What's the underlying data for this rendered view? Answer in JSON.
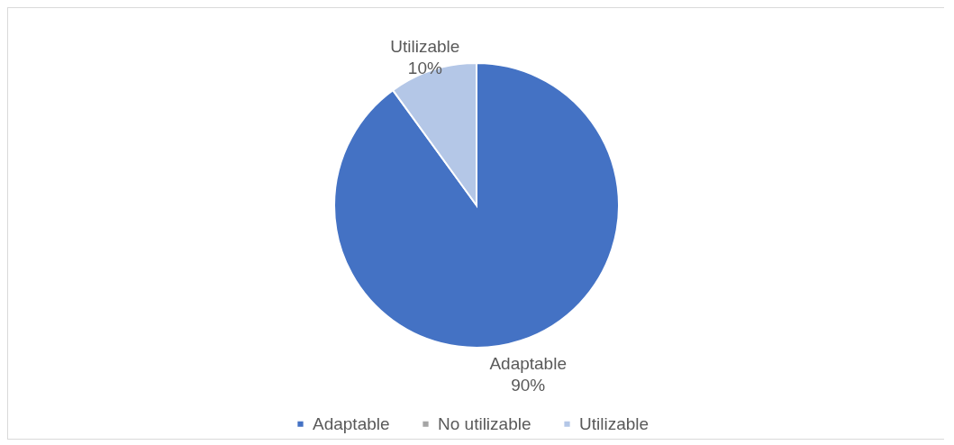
{
  "chart_data": {
    "type": "pie",
    "categories": [
      "Adaptable",
      "No utilizable",
      "Utilizable"
    ],
    "values": [
      90,
      0,
      10
    ],
    "colors": [
      "#4472c4",
      "#a5a5a5",
      "#b4c7e7"
    ],
    "value_labels": [
      "90%",
      null,
      "10%"
    ],
    "legend": "bottom"
  }
}
